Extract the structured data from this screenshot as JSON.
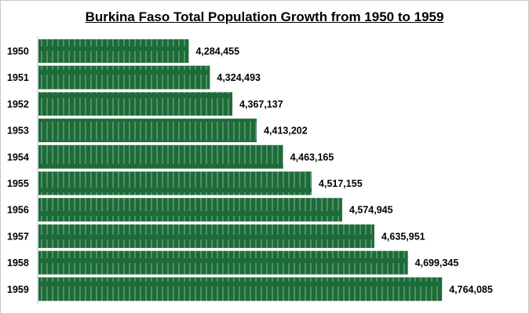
{
  "chart_data": {
    "type": "bar",
    "orientation": "horizontal",
    "title": "Burkina Faso Total Population Growth from 1950 to 1959",
    "categories": [
      "1950",
      "1951",
      "1952",
      "1953",
      "1954",
      "1955",
      "1956",
      "1957",
      "1958",
      "1959"
    ],
    "values": [
      4284455,
      4324493,
      4367137,
      4413202,
      4463165,
      4517155,
      4574945,
      4635951,
      4699345,
      4764085
    ],
    "data_labels": [
      "4,284,455",
      "4,324,493",
      "4,367,137",
      "4,413,202",
      "4,463,165",
      "4,517,155",
      "4,574,945",
      "4,635,951",
      "4,699,345",
      "4,764,085"
    ],
    "xlim": [
      4000000,
      5000000
    ],
    "grid": false,
    "legend": "none",
    "bar_color": "#1e6b3a"
  }
}
